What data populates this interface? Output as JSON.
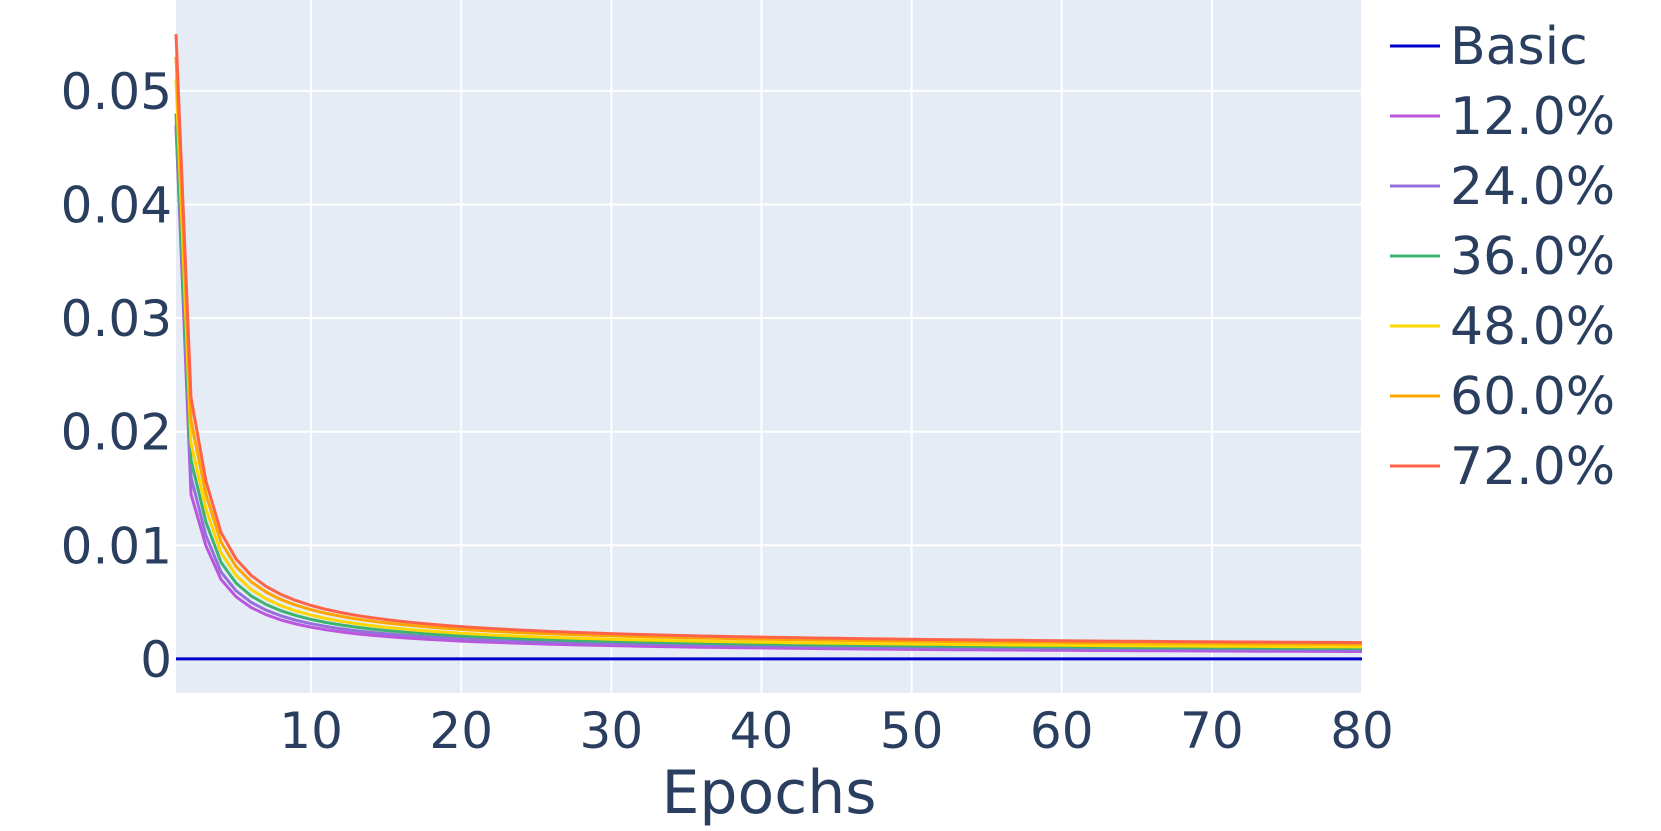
{
  "chart_data": {
    "type": "line",
    "title": "",
    "xlabel": "Epochs",
    "ylabel": "",
    "xlim": [
      1,
      80
    ],
    "ylim": [
      -0.003,
      0.058
    ],
    "x_ticks": [
      10,
      20,
      30,
      40,
      50,
      60,
      70,
      80
    ],
    "x_tick_labels": [
      "10",
      "20",
      "30",
      "40",
      "50",
      "60",
      "70",
      "80"
    ],
    "y_ticks": [
      0,
      0.01,
      0.02,
      0.03,
      0.04,
      0.05
    ],
    "y_tick_labels": [
      "0",
      "0.01",
      "0.02",
      "0.03",
      "0.04",
      "0.05"
    ],
    "grid": true,
    "legend_position": "right",
    "background": "#e5ecf6",
    "series": [
      {
        "name": "Basic",
        "color": "#0000cc",
        "start": 0,
        "e2": 0,
        "k": 0,
        "p": 0.9,
        "end": 0
      },
      {
        "name": "12.0%",
        "color": "#bb55dd",
        "start": 0.047,
        "e2": 0.0145,
        "k": 0.018,
        "p": 0.9,
        "end": 0.0003
      },
      {
        "name": "24.0%",
        "color": "#9370db",
        "start": 0.047,
        "e2": 0.016,
        "k": 0.0195,
        "p": 0.9,
        "end": 0.0004
      },
      {
        "name": "36.0%",
        "color": "#3cb371",
        "start": 0.048,
        "e2": 0.0175,
        "k": 0.0215,
        "p": 0.9,
        "end": 0.0005
      },
      {
        "name": "48.0%",
        "color": "#ffd700",
        "start": 0.051,
        "e2": 0.019,
        "k": 0.0235,
        "p": 0.9,
        "end": 0.0006
      },
      {
        "name": "60.0%",
        "color": "#ffa500",
        "start": 0.053,
        "e2": 0.021,
        "k": 0.0255,
        "p": 0.9,
        "end": 0.0008
      },
      {
        "name": "72.0%",
        "color": "#ff6347",
        "start": 0.055,
        "e2": 0.023,
        "k": 0.0275,
        "p": 0.9,
        "end": 0.0009
      }
    ]
  }
}
